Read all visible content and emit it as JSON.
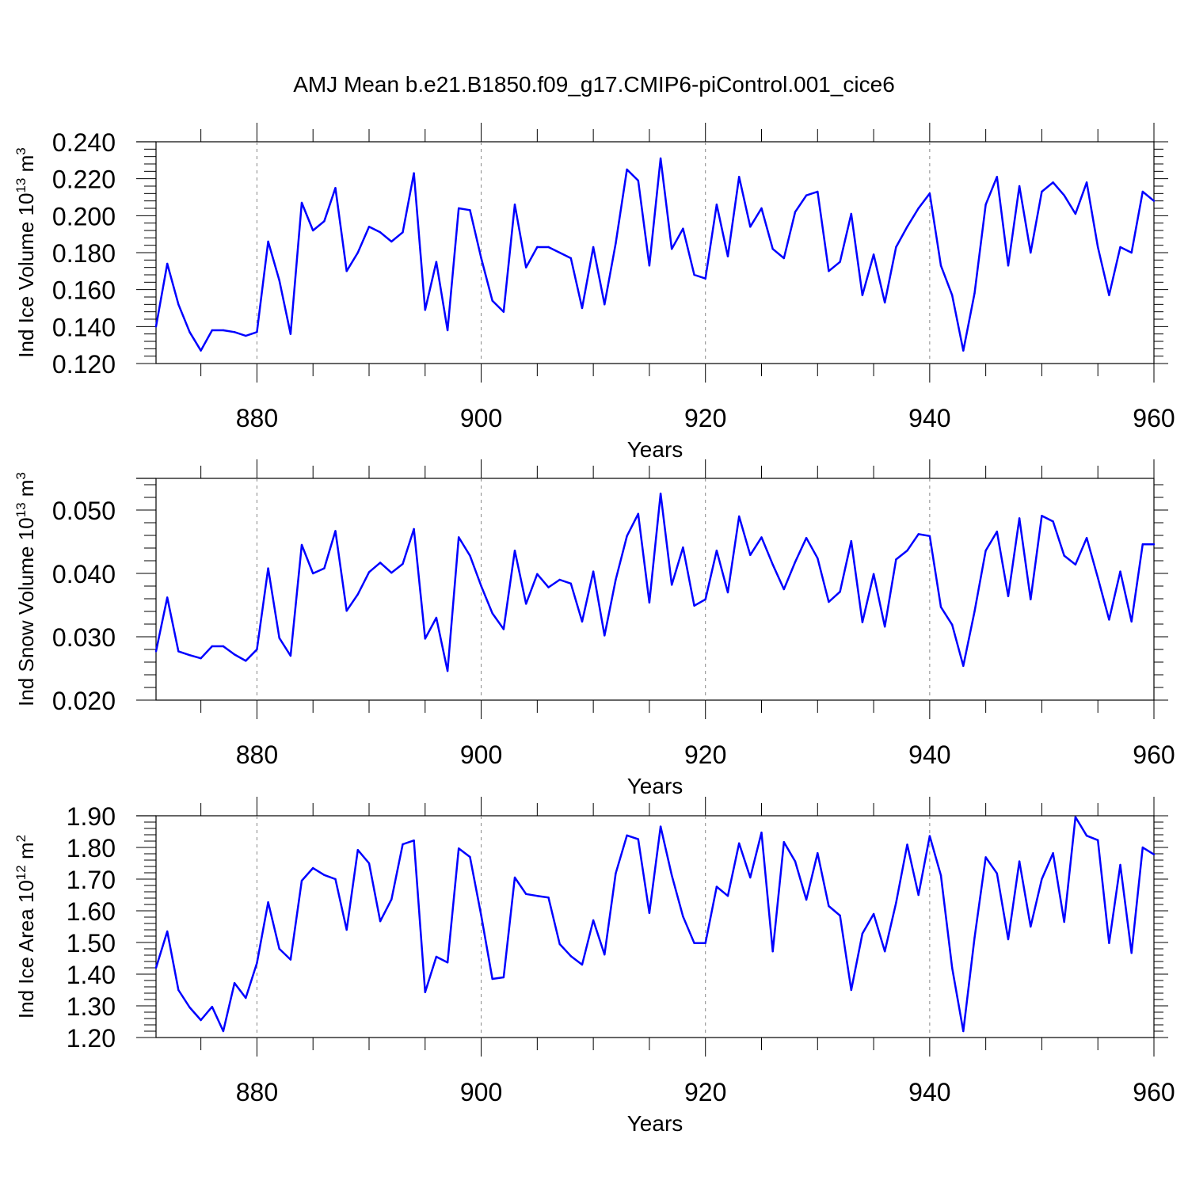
{
  "title": "AMJ Mean b.e21.B1850.f09_g17.CMIP6-piControl.001_cice6",
  "line_color": "#0000ff",
  "chart_data": [
    {
      "type": "line",
      "ylabel_main": "Ind Ice Volume 10",
      "ylabel_exp": "13",
      "ylabel_unit": " m",
      "ylabel_unit_exp": "3",
      "xlabel": "Years",
      "xlim": [
        871,
        960
      ],
      "ylim": [
        0.12,
        0.24
      ],
      "yticks": [
        0.12,
        0.14,
        0.16,
        0.18,
        0.2,
        0.22,
        0.24
      ],
      "ytick_labels": [
        "0.120",
        "0.140",
        "0.160",
        "0.180",
        "0.200",
        "0.220",
        "0.240"
      ],
      "xticks": [
        880,
        900,
        920,
        940,
        960
      ],
      "xtick_labels": [
        "880",
        "900",
        "920",
        "940",
        "960"
      ],
      "grid": "dashed vertical at major x ticks",
      "series": [
        {
          "x_start": 871,
          "values": [
            0.14,
            0.174,
            0.152,
            0.137,
            0.127,
            0.138,
            0.138,
            0.137,
            0.135,
            0.137,
            0.186,
            0.165,
            0.136,
            0.207,
            0.192,
            0.197,
            0.215,
            0.17,
            0.18,
            0.194,
            0.191,
            0.186,
            0.191,
            0.223,
            0.149,
            0.175,
            0.138,
            0.204,
            0.203,
            0.177,
            0.154,
            0.148,
            0.206,
            0.172,
            0.183,
            0.183,
            0.18,
            0.177,
            0.15,
            0.183,
            0.152,
            0.185,
            0.225,
            0.219,
            0.173,
            0.231,
            0.182,
            0.193,
            0.168,
            0.166,
            0.206,
            0.178,
            0.221,
            0.194,
            0.204,
            0.182,
            0.177,
            0.202,
            0.211,
            0.213,
            0.17,
            0.175,
            0.201,
            0.157,
            0.179,
            0.153,
            0.183,
            0.194,
            0.204,
            0.212,
            0.173,
            0.157,
            0.127,
            0.158,
            0.206,
            0.221,
            0.173,
            0.216,
            0.18,
            0.213,
            0.218,
            0.211,
            0.201,
            0.218,
            0.183,
            0.157,
            0.183,
            0.18,
            0.213,
            0.208
          ]
        }
      ]
    },
    {
      "type": "line",
      "ylabel_main": "Ind Snow Volume 10",
      "ylabel_exp": "13",
      "ylabel_unit": " m",
      "ylabel_unit_exp": "3",
      "xlabel": "Years",
      "xlim": [
        871,
        960
      ],
      "ylim": [
        0.02,
        0.055
      ],
      "yticks": [
        0.02,
        0.03,
        0.04,
        0.05
      ],
      "ytick_labels": [
        "0.020",
        "0.030",
        "0.040",
        "0.050"
      ],
      "xticks": [
        880,
        900,
        920,
        940,
        960
      ],
      "xtick_labels": [
        "880",
        "900",
        "920",
        "940",
        "960"
      ],
      "grid": "dashed vertical at major x ticks",
      "series": [
        {
          "x_start": 871,
          "values": [
            0.0277,
            0.0362,
            0.0277,
            0.0271,
            0.0266,
            0.0285,
            0.0285,
            0.0272,
            0.0262,
            0.028,
            0.0408,
            0.0298,
            0.027,
            0.0445,
            0.04,
            0.0408,
            0.0467,
            0.0341,
            0.0367,
            0.0402,
            0.0417,
            0.0401,
            0.0415,
            0.047,
            0.0297,
            0.033,
            0.0246,
            0.0457,
            0.0428,
            0.038,
            0.0337,
            0.0312,
            0.0436,
            0.0352,
            0.0399,
            0.0378,
            0.039,
            0.0384,
            0.0324,
            0.0403,
            0.0302,
            0.039,
            0.0459,
            0.0494,
            0.0354,
            0.0526,
            0.0382,
            0.0441,
            0.0349,
            0.0359,
            0.0436,
            0.037,
            0.049,
            0.0429,
            0.0457,
            0.0414,
            0.0375,
            0.0418,
            0.0456,
            0.0424,
            0.0355,
            0.0371,
            0.0451,
            0.0323,
            0.0399,
            0.0316,
            0.0422,
            0.0436,
            0.0462,
            0.0459,
            0.0347,
            0.0319,
            0.0254,
            0.034,
            0.0436,
            0.0466,
            0.0364,
            0.0487,
            0.0359,
            0.0491,
            0.0482,
            0.0428,
            0.0414,
            0.0456,
            0.0393,
            0.0327,
            0.0403,
            0.0324,
            0.0446,
            0.0446
          ]
        }
      ]
    },
    {
      "type": "line",
      "ylabel_main": "Ind Ice Area 10",
      "ylabel_exp": "12",
      "ylabel_unit": " m",
      "ylabel_unit_exp": "2",
      "xlabel": "Years",
      "xlim": [
        871,
        960
      ],
      "ylim": [
        1.2,
        1.9
      ],
      "yticks": [
        1.2,
        1.3,
        1.4,
        1.5,
        1.6,
        1.7,
        1.8,
        1.9
      ],
      "ytick_labels": [
        "1.20",
        "1.30",
        "1.40",
        "1.50",
        "1.60",
        "1.70",
        "1.80",
        "1.90"
      ],
      "xticks": [
        880,
        900,
        920,
        940,
        960
      ],
      "xtick_labels": [
        "880",
        "900",
        "920",
        "940",
        "960"
      ],
      "grid": "dashed vertical at major x ticks",
      "series": [
        {
          "x_start": 871,
          "values": [
            1.42,
            1.535,
            1.35,
            1.295,
            1.255,
            1.297,
            1.22,
            1.372,
            1.325,
            1.435,
            1.627,
            1.48,
            1.446,
            1.695,
            1.735,
            1.713,
            1.7,
            1.54,
            1.792,
            1.75,
            1.567,
            1.636,
            1.81,
            1.822,
            1.343,
            1.455,
            1.437,
            1.797,
            1.77,
            1.585,
            1.385,
            1.39,
            1.705,
            1.653,
            1.647,
            1.642,
            1.495,
            1.457,
            1.43,
            1.57,
            1.462,
            1.718,
            1.838,
            1.826,
            1.593,
            1.866,
            1.712,
            1.582,
            1.498,
            1.498,
            1.676,
            1.647,
            1.813,
            1.705,
            1.847,
            1.472,
            1.817,
            1.756,
            1.635,
            1.782,
            1.615,
            1.585,
            1.35,
            1.528,
            1.59,
            1.472,
            1.625,
            1.809,
            1.65,
            1.836,
            1.712,
            1.42,
            1.22,
            1.515,
            1.769,
            1.718,
            1.51,
            1.756,
            1.55,
            1.7,
            1.782,
            1.565,
            1.896,
            1.837,
            1.823,
            1.498,
            1.745,
            1.467,
            1.8,
            1.778
          ]
        }
      ]
    }
  ]
}
